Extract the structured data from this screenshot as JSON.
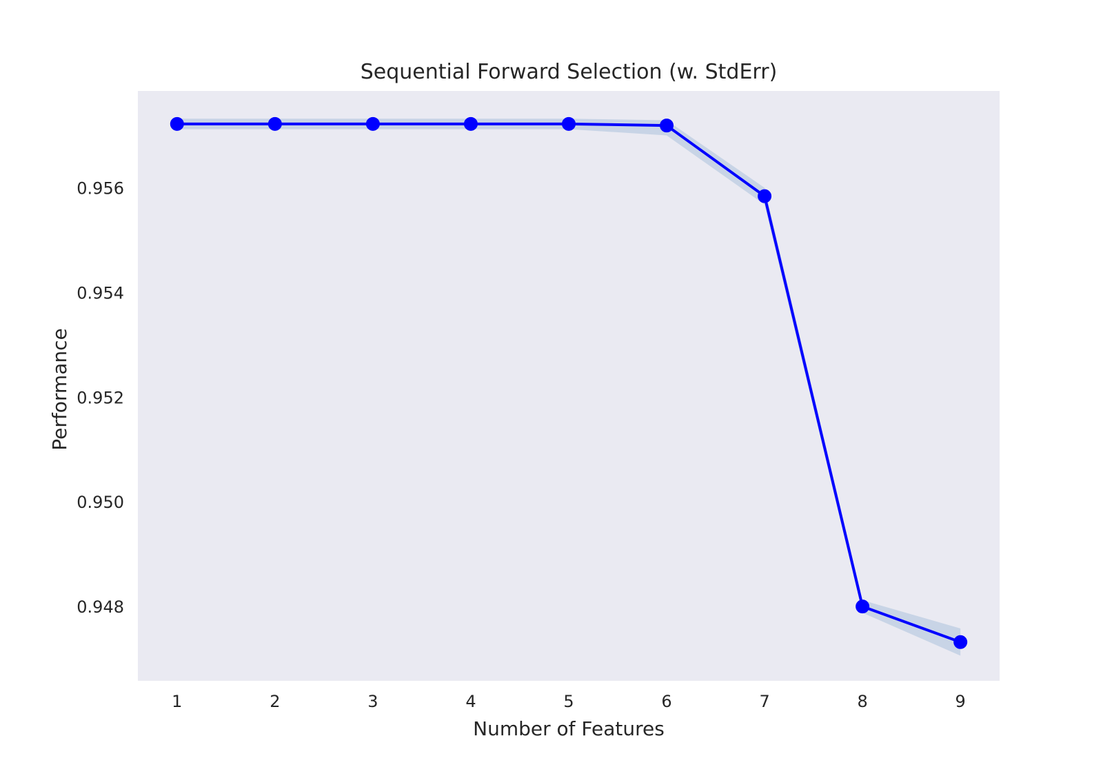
{
  "chart_data": {
    "type": "line",
    "title": "Sequential Forward Selection (w. StdErr)",
    "xlabel": "Number of Features",
    "ylabel": "Performance",
    "x": [
      1,
      2,
      3,
      4,
      5,
      6,
      7,
      8,
      9
    ],
    "x_tick_labels": [
      "1",
      "2",
      "3",
      "4",
      "5",
      "6",
      "7",
      "8",
      "9"
    ],
    "y_ticks": [
      0.948,
      0.95,
      0.952,
      0.954,
      0.956
    ],
    "y_tick_labels": [
      "0.948",
      "0.950",
      "0.952",
      "0.954",
      "0.956"
    ],
    "xlim": [
      0.6,
      9.4
    ],
    "ylim": [
      0.94658,
      0.95785
    ],
    "grid": false,
    "background": "#eaeaf2",
    "series": [
      {
        "values": [
          0.95722,
          0.95722,
          0.95722,
          0.95722,
          0.95722,
          0.95719,
          0.95584,
          0.948,
          0.94732
        ],
        "stderr_upper": [
          0.95732,
          0.95732,
          0.95732,
          0.95732,
          0.95732,
          0.95729,
          0.956,
          0.94812,
          0.94758
        ],
        "stderr_lower": [
          0.95712,
          0.95712,
          0.95712,
          0.95712,
          0.95712,
          0.957,
          0.95568,
          0.94788,
          0.94706
        ],
        "color": "#0000ff",
        "band_color": "#b0c4de"
      }
    ]
  }
}
